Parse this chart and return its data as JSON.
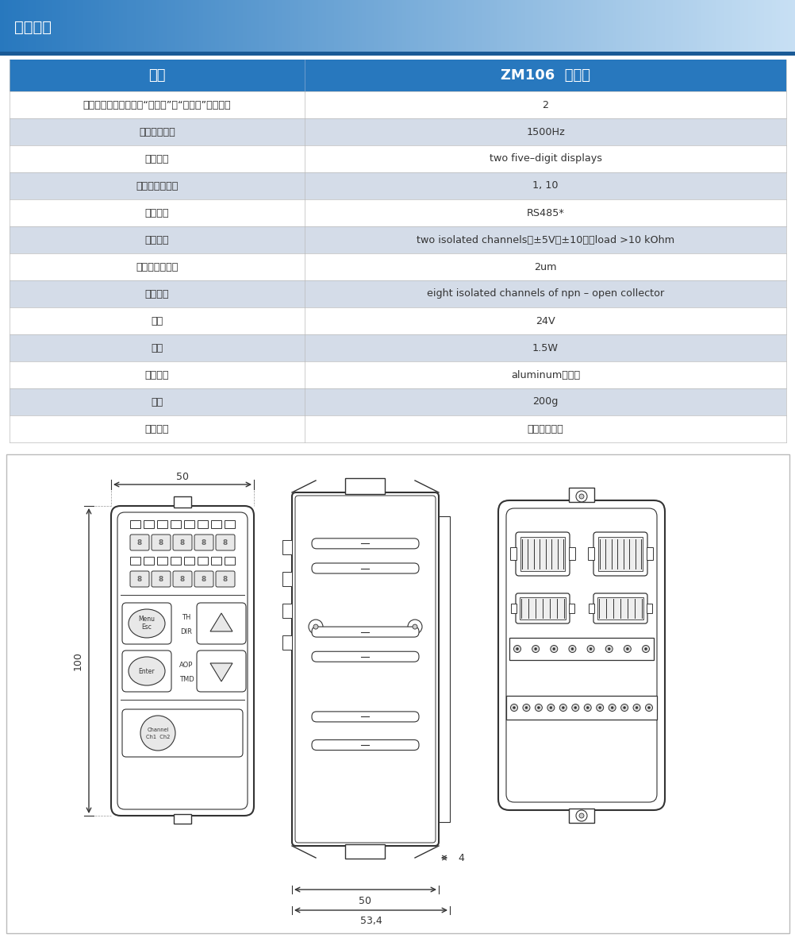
{
  "title": "技术规格",
  "header_bg_gradient_left": "#2878be",
  "header_bg_gradient_right": "#c8e0f4",
  "header_text_color": "#ffffff",
  "header_line_color": "#1a5a96",
  "col_header_bg": "#2878be",
  "col_header_text_color": "#ffffff",
  "col1_header": "型号",
  "col2_header": "ZM106  控制器",
  "table_rows": [
    {
      "label": "可连接的测量头对量（“发送器”－“接收器”的对数）",
      "value": "2",
      "shaded": false
    },
    {
      "label": "结果更新周期",
      "value": "1500Hz",
      "shaded": true
    },
    {
      "label": "数字显示",
      "value": "two five–digit displays",
      "shaded": false
    },
    {
      "label": "数字显示分辨率",
      "value": "1, 10",
      "shaded": true
    },
    {
      "label": "数字输出",
      "value": "RS485*",
      "shaded": false
    },
    {
      "label": "模拟输出",
      "value": "two isolated channels，±5V（±10），load >10 kOhm",
      "shaded": true
    },
    {
      "label": "模拟输出分辨率",
      "value": "2um",
      "shaded": false
    },
    {
      "label": "逻辑输出",
      "value": "eight isolated channels of npn – open collector",
      "shaded": true
    },
    {
      "label": "电源",
      "value": "24V",
      "shaded": false
    },
    {
      "label": "功耗",
      "value": "1.5W",
      "shaded": true
    },
    {
      "label": "外壳材料",
      "value": "aluminum（铝）",
      "shaded": false
    },
    {
      "label": "重量",
      "value": "200g",
      "shaded": true
    },
    {
      "label": "安装尺寸",
      "value": "见下方尺寸图",
      "shaded": false
    }
  ],
  "shaded_bg": "#d4dce8",
  "white_bg": "#ffffff",
  "border_color": "#bbbbbb",
  "text_color": "#333333",
  "diagram_border_color": "#cccccc",
  "line_color": "#333333",
  "device_fill": "#f0f0f0",
  "device_ec": "#333333"
}
